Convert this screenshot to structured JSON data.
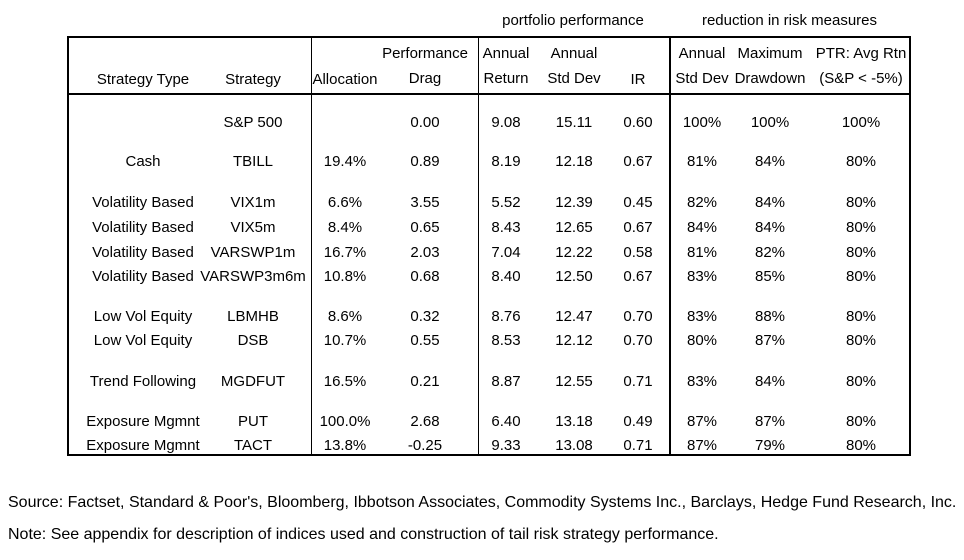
{
  "group_headers": {
    "portfolio_performance": "portfolio performance",
    "risk_reduction": "reduction in risk measures"
  },
  "columns": [
    {
      "key": "strategy_type",
      "lines": [
        "Strategy Type"
      ]
    },
    {
      "key": "strategy",
      "lines": [
        "Strategy"
      ]
    },
    {
      "key": "allocation",
      "lines": [
        "Allocation"
      ]
    },
    {
      "key": "performance_drag",
      "lines": [
        "Performance",
        "Drag"
      ]
    },
    {
      "key": "annual_return",
      "lines": [
        "Annual",
        "Return"
      ]
    },
    {
      "key": "annual_std_dev",
      "lines": [
        "Annual",
        "Std Dev"
      ]
    },
    {
      "key": "ir",
      "lines": [
        "IR"
      ]
    },
    {
      "key": "rr_annual_std_dev",
      "lines": [
        "Annual",
        "Std Dev"
      ]
    },
    {
      "key": "max_drawdown",
      "lines": [
        "Maximum",
        "Drawdown"
      ]
    },
    {
      "key": "ptr",
      "lines": [
        "PTR: Avg Rtn",
        "(S&P < -5%)"
      ]
    }
  ],
  "rows": [
    [
      "",
      "S&P 500",
      "",
      "0.00",
      "9.08",
      "15.11",
      "0.60",
      "100%",
      "100%",
      "100%"
    ],
    [
      "Cash",
      "TBILL",
      "19.4%",
      "0.89",
      "8.19",
      "12.18",
      "0.67",
      "81%",
      "84%",
      "80%"
    ],
    [
      "Volatility Based",
      "VIX1m",
      "6.6%",
      "3.55",
      "5.52",
      "12.39",
      "0.45",
      "82%",
      "84%",
      "80%"
    ],
    [
      "Volatility Based",
      "VIX5m",
      "8.4%",
      "0.65",
      "8.43",
      "12.65",
      "0.67",
      "84%",
      "84%",
      "80%"
    ],
    [
      "Volatility Based",
      "VARSWP1m",
      "16.7%",
      "2.03",
      "7.04",
      "12.22",
      "0.58",
      "81%",
      "82%",
      "80%"
    ],
    [
      "Volatility Based",
      "VARSWP3m6m",
      "10.8%",
      "0.68",
      "8.40",
      "12.50",
      "0.67",
      "83%",
      "85%",
      "80%"
    ],
    [
      "Low Vol Equity",
      "LBMHB",
      "8.6%",
      "0.32",
      "8.76",
      "12.47",
      "0.70",
      "83%",
      "88%",
      "80%"
    ],
    [
      "Low Vol Equity",
      "DSB",
      "10.7%",
      "0.55",
      "8.53",
      "12.12",
      "0.70",
      "80%",
      "87%",
      "80%"
    ],
    [
      "Trend Following",
      "MGDFUT",
      "16.5%",
      "0.21",
      "8.87",
      "12.55",
      "0.71",
      "83%",
      "84%",
      "80%"
    ],
    [
      "Exposure Mgmnt",
      "PUT",
      "100.0%",
      "2.68",
      "6.40",
      "13.18",
      "0.49",
      "87%",
      "87%",
      "80%"
    ],
    [
      "Exposure Mgmnt",
      "TACT",
      "13.8%",
      "-0.25",
      "9.33",
      "13.08",
      "0.71",
      "87%",
      "79%",
      "80%"
    ]
  ],
  "footnotes": {
    "source": "Source: Factset, Standard & Poor's, Bloomberg, Ibbotson Associates, Commodity Systems Inc., Barclays, Hedge Fund Research, Inc.",
    "note": "Note: See appendix for description of indices used and construction of tail risk strategy performance."
  }
}
